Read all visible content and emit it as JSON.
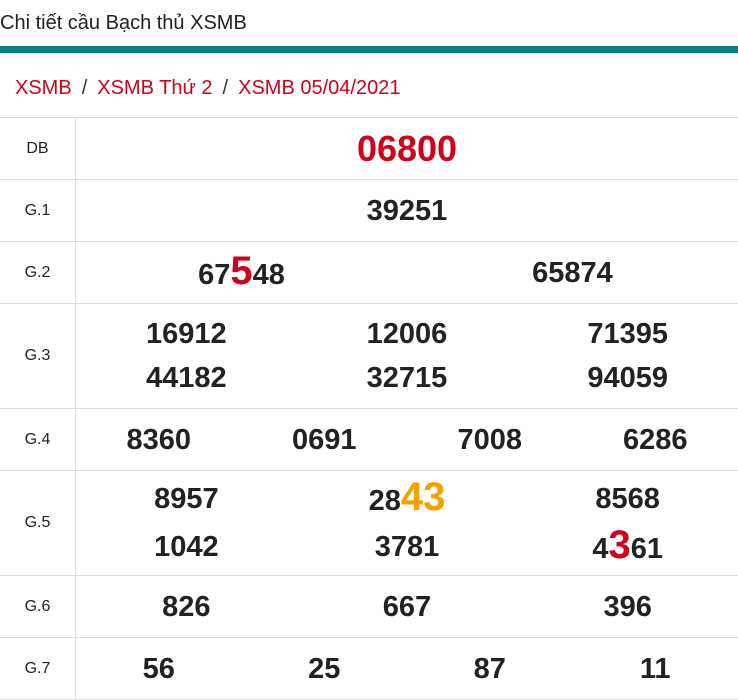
{
  "header": {
    "title": "Chi tiết cầu Bạch thủ XSMB"
  },
  "breadcrumb": [
    "XSMB",
    "XSMB Thứ 2",
    "XSMB 05/04/2021"
  ],
  "breadcrumb_separator": "/",
  "colors": {
    "accent": "#0a7f80",
    "red": "#d0021b",
    "orange": "#f5a000"
  },
  "results": [
    {
      "label": "DB",
      "cols": 1,
      "height": 62,
      "cells": [
        {
          "parts": [
            {
              "t": "06800"
            }
          ]
        }
      ]
    },
    {
      "label": "G.1",
      "cols": 1,
      "height": 62,
      "cells": [
        {
          "parts": [
            {
              "t": "39251"
            }
          ]
        }
      ]
    },
    {
      "label": "G.2",
      "cols": 2,
      "height": 62,
      "cells": [
        {
          "parts": [
            {
              "t": "67"
            },
            {
              "t": "5",
              "hl": "red"
            },
            {
              "t": "48"
            }
          ]
        },
        {
          "parts": [
            {
              "t": "65874"
            }
          ]
        }
      ]
    },
    {
      "label": "G.3",
      "cols": 3,
      "height": 105,
      "cells": [
        {
          "parts": [
            {
              "t": "16912"
            }
          ]
        },
        {
          "parts": [
            {
              "t": "12006"
            }
          ]
        },
        {
          "parts": [
            {
              "t": "71395"
            }
          ]
        },
        {
          "parts": [
            {
              "t": "44182"
            }
          ]
        },
        {
          "parts": [
            {
              "t": "32715"
            }
          ]
        },
        {
          "parts": [
            {
              "t": "94059"
            }
          ]
        }
      ]
    },
    {
      "label": "G.4",
      "cols": 4,
      "height": 62,
      "cells": [
        {
          "parts": [
            {
              "t": "8360"
            }
          ]
        },
        {
          "parts": [
            {
              "t": "0691"
            }
          ]
        },
        {
          "parts": [
            {
              "t": "7008"
            }
          ]
        },
        {
          "parts": [
            {
              "t": "6286"
            }
          ]
        }
      ]
    },
    {
      "label": "G.5",
      "cols": 3,
      "height": 105,
      "cells": [
        {
          "parts": [
            {
              "t": "8957"
            }
          ]
        },
        {
          "parts": [
            {
              "t": "28"
            },
            {
              "t": "43",
              "hl": "orange"
            }
          ]
        },
        {
          "parts": [
            {
              "t": "8568"
            }
          ]
        },
        {
          "parts": [
            {
              "t": "1042"
            }
          ]
        },
        {
          "parts": [
            {
              "t": "3781"
            }
          ]
        },
        {
          "parts": [
            {
              "t": "4"
            },
            {
              "t": "3",
              "hl": "red"
            },
            {
              "t": "61"
            }
          ]
        }
      ]
    },
    {
      "label": "G.6",
      "cols": 3,
      "height": 62,
      "cells": [
        {
          "parts": [
            {
              "t": "826"
            }
          ]
        },
        {
          "parts": [
            {
              "t": "667"
            }
          ]
        },
        {
          "parts": [
            {
              "t": "396"
            }
          ]
        }
      ]
    },
    {
      "label": "G.7",
      "cols": 4,
      "height": 62,
      "cells": [
        {
          "parts": [
            {
              "t": "56"
            }
          ]
        },
        {
          "parts": [
            {
              "t": "25"
            }
          ]
        },
        {
          "parts": [
            {
              "t": "87"
            }
          ]
        },
        {
          "parts": [
            {
              "t": "11"
            }
          ]
        }
      ]
    }
  ]
}
